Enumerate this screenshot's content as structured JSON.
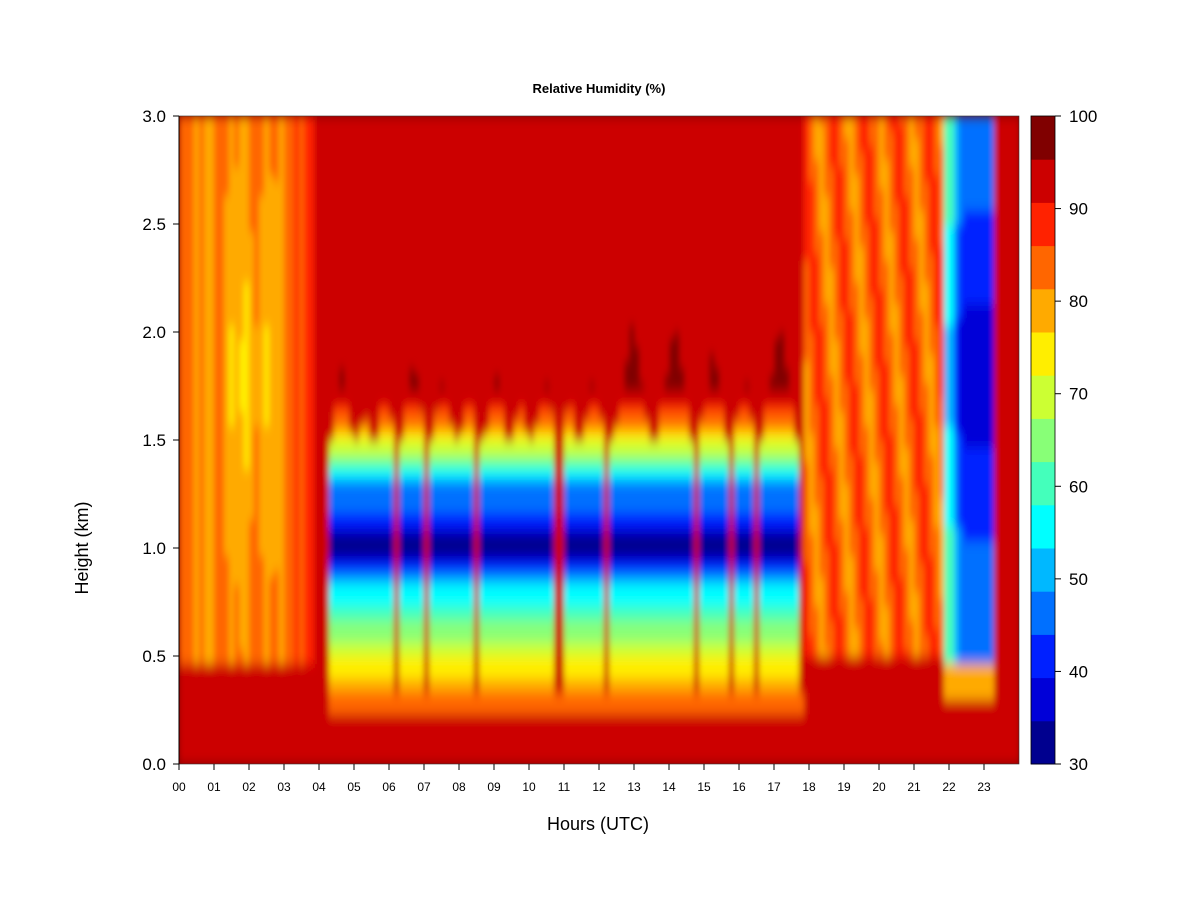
{
  "chart_data": {
    "type": "heatmap",
    "title": "Relative Humidity (%)",
    "xlabel": "Hours (UTC)",
    "ylabel": "Height (km)",
    "xlim": [
      0,
      24
    ],
    "ylim": [
      0,
      3
    ],
    "x_ticks": [
      "00",
      "01",
      "02",
      "03",
      "04",
      "05",
      "06",
      "07",
      "08",
      "09",
      "10",
      "11",
      "12",
      "13",
      "14",
      "15",
      "16",
      "17",
      "18",
      "19",
      "20",
      "21",
      "22",
      "23"
    ],
    "y_ticks": [
      "0.0",
      "0.5",
      "1.0",
      "1.5",
      "2.0",
      "2.5",
      "3.0"
    ],
    "colorbar": {
      "range": [
        30,
        100
      ],
      "levels": [
        30,
        35,
        40,
        45,
        50,
        55,
        60,
        65,
        70,
        75,
        80,
        85,
        90,
        95,
        100
      ],
      "tick_labels": [
        "30",
        "40",
        "50",
        "60",
        "70",
        "80",
        "90",
        "100"
      ],
      "colors": [
        "#00008f",
        "#0000d8",
        "#0020ff",
        "#0070ff",
        "#00b8ff",
        "#00ffff",
        "#44ffbb",
        "#88ff77",
        "#ccff33",
        "#ffee00",
        "#ffaa00",
        "#ff6600",
        "#ff2200",
        "#cc0000",
        "#800000"
      ]
    },
    "clear_columns_hours": [
      [
        4.3,
        5.0
      ],
      [
        5.1,
        5.5
      ],
      [
        5.6,
        6.2
      ],
      [
        6.3,
        7.1
      ],
      [
        7.2,
        7.9
      ],
      [
        8.0,
        8.6
      ],
      [
        8.7,
        9.4
      ],
      [
        9.5,
        10.0
      ],
      [
        10.1,
        10.8
      ],
      [
        10.9,
        11.4
      ],
      [
        11.5,
        12.2
      ],
      [
        12.4,
        13.5
      ],
      [
        13.6,
        14.7
      ],
      [
        14.8,
        15.7
      ],
      [
        15.8,
        16.5
      ],
      [
        16.6,
        17.7
      ],
      [
        21.8,
        22.4
      ],
      [
        22.4,
        23.3
      ]
    ],
    "dry_layer_km": [
      0.3,
      1.5
    ],
    "driest_height_km": 1.0
  }
}
